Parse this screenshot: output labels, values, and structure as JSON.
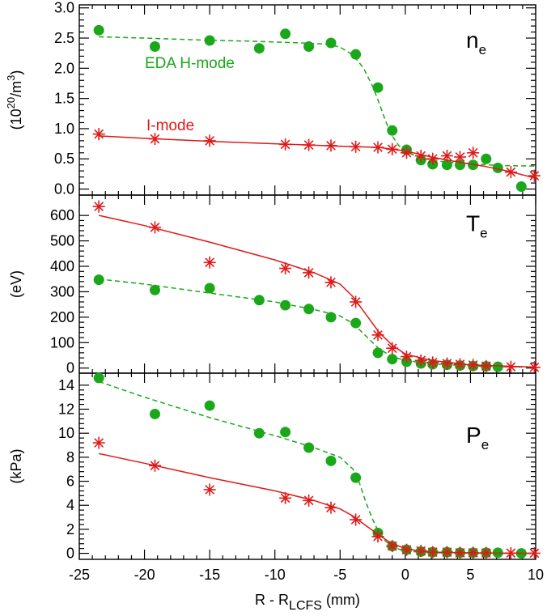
{
  "chart_data": {
    "type": "scatter",
    "shared_x": {
      "xlabel_main": "R - R",
      "xlabel_sub": "LCFS",
      "xlabel_unit": " (mm)",
      "xlim": [
        -25,
        10
      ],
      "xticks": [
        -25,
        -20,
        -15,
        -10,
        -5,
        0,
        5,
        10
      ]
    },
    "panels": [
      {
        "id": "ne",
        "label_main": "n",
        "label_sub": "e",
        "ylabel_pre": "(10",
        "ylabel_sup1": "20",
        "ylabel_mid": "/m",
        "ylabel_sup2": "3",
        "ylabel_post": ")",
        "ylim": [
          -0.1,
          3.05
        ],
        "yticks": [
          0.0,
          0.5,
          1.0,
          1.5,
          2.0,
          2.5,
          3.0
        ],
        "ytick_labels": [
          "0.0",
          "0.5",
          "1.0",
          "1.5",
          "2.0",
          "2.5",
          "3.0"
        ],
        "series": [
          {
            "name": "EDA H-mode",
            "marker": "circle",
            "line": "dashed",
            "color": "#1aa81a",
            "x": [
              -23.5,
              -19.2,
              -15,
              -11.2,
              -9.2,
              -7.4,
              -5.7,
              -3.8,
              -2.1,
              -1.0,
              0.1,
              1.2,
              2.1,
              3.2,
              4.2,
              5.2,
              6.2,
              7.1,
              8.9
            ],
            "y": [
              2.63,
              2.36,
              2.46,
              2.33,
              2.57,
              2.36,
              2.42,
              2.23,
              1.68,
              0.97,
              0.65,
              0.48,
              0.41,
              0.4,
              0.4,
              0.4,
              0.5,
              0.35,
              0.04
            ],
            "fit_x": [
              -23.5,
              -20,
              -16,
              -12,
              -8,
              -6,
              -5,
              -4,
              -3.2,
              -2.5,
              -2,
              -1.5,
              -1,
              -0.5,
              0,
              1,
              2,
              3,
              5,
              7,
              10
            ],
            "fit_y": [
              2.52,
              2.5,
              2.47,
              2.45,
              2.42,
              2.4,
              2.35,
              2.22,
              2.0,
              1.7,
              1.42,
              1.12,
              0.88,
              0.72,
              0.62,
              0.53,
              0.48,
              0.45,
              0.42,
              0.39,
              0.38
            ]
          },
          {
            "name": "I-mode",
            "marker": "asterisk",
            "line": "solid",
            "color": "#e01919",
            "x": [
              -23.5,
              -19.2,
              -15,
              -9.2,
              -7.4,
              -5.7,
              -3.8,
              -2.1,
              -1.0,
              0.1,
              1.2,
              2.1,
              3.2,
              4.2,
              5.2,
              8.1,
              9.9
            ],
            "y": [
              0.91,
              0.83,
              0.8,
              0.74,
              0.73,
              0.72,
              0.7,
              0.69,
              0.66,
              0.6,
              0.55,
              0.5,
              0.55,
              0.53,
              0.6,
              0.28,
              0.22
            ],
            "fit_x": [
              -23.5,
              -20,
              -15,
              -10,
              -5,
              -2,
              0,
              2,
              4,
              6,
              8,
              10
            ],
            "fit_y": [
              0.88,
              0.84,
              0.79,
              0.75,
              0.71,
              0.69,
              0.63,
              0.53,
              0.45,
              0.38,
              0.29,
              0.18
            ]
          }
        ]
      },
      {
        "id": "te",
        "label_main": "T",
        "label_sub": "e",
        "ylabel_pre": "(eV)",
        "ylim": [
          -20,
          680
        ],
        "yticks": [
          0,
          100,
          200,
          300,
          400,
          500,
          600
        ],
        "ytick_labels": [
          "0",
          "100",
          "200",
          "300",
          "400",
          "500",
          "600"
        ],
        "series": [
          {
            "name": "EDA H-mode",
            "marker": "circle",
            "line": "dashed",
            "color": "#1aa81a",
            "x": [
              -23.5,
              -19.2,
              -15,
              -11.2,
              -9.2,
              -7.4,
              -5.7,
              -3.8,
              -2.1,
              -1.0,
              0.1,
              1.2,
              2.1,
              3.2,
              4.2,
              5.2,
              6.2,
              7.1
            ],
            "y": [
              347,
              307,
              314,
              267,
              247,
              232,
              200,
              177,
              60,
              35,
              25,
              18,
              15,
              13,
              10,
              8,
              7,
              5
            ],
            "fit_x": [
              -23.5,
              -20,
              -15,
              -10,
              -7,
              -5,
              -4,
              -3,
              -2,
              -1,
              0,
              2,
              5,
              10
            ],
            "fit_y": [
              350,
              330,
              295,
              260,
              230,
              205,
              175,
              125,
              75,
              45,
              30,
              17,
              8,
              3
            ]
          },
          {
            "name": "I-mode",
            "marker": "asterisk",
            "line": "solid",
            "color": "#e01919",
            "x": [
              -23.5,
              -19.2,
              -15,
              -9.2,
              -7.4,
              -5.7,
              -3.8,
              -2.1,
              -1.0,
              0.1,
              1.2,
              2.1,
              3.2,
              4.2,
              5.2,
              6.2,
              8.1,
              9.9
            ],
            "y": [
              635,
              553,
              415,
              392,
              375,
              337,
              260,
              130,
              78,
              45,
              30,
              22,
              18,
              15,
              12,
              8,
              5,
              3
            ],
            "fit_x": [
              -23.5,
              -20,
              -15,
              -10,
              -7,
              -5,
              -4,
              -3,
              -2,
              -1,
              0,
              2,
              5,
              10
            ],
            "fit_y": [
              600,
              560,
              495,
              425,
              375,
              330,
              280,
              210,
              140,
              90,
              55,
              30,
              12,
              4
            ]
          }
        ]
      },
      {
        "id": "pe",
        "label_main": "P",
        "label_sub": "e",
        "ylabel_pre": "(kPa)",
        "ylim": [
          -0.5,
          15.0
        ],
        "yticks": [
          0,
          2,
          4,
          6,
          8,
          10,
          12,
          14
        ],
        "ytick_labels": [
          "0",
          "2",
          "4",
          "6",
          "8",
          "10",
          "12",
          "14"
        ],
        "series": [
          {
            "name": "EDA H-mode",
            "marker": "circle",
            "line": "dashed",
            "color": "#1aa81a",
            "x": [
              -23.5,
              -19.2,
              -15,
              -11.2,
              -9.2,
              -7.4,
              -5.7,
              -3.8,
              -2.1,
              -1.0,
              0.1,
              1.2,
              2.1,
              3.2,
              4.2,
              5.2,
              6.2,
              7.1,
              8.9
            ],
            "y": [
              14.6,
              11.6,
              12.3,
              10.0,
              10.1,
              8.8,
              7.7,
              6.3,
              1.7,
              0.6,
              0.3,
              0.15,
              0.1,
              0.1,
              0.05,
              0.05,
              0.05,
              0.05,
              0.0
            ],
            "fit_x": [
              -23.5,
              -20,
              -15,
              -10,
              -7,
              -5,
              -4,
              -3.5,
              -3,
              -2.5,
              -2,
              -1.5,
              -1,
              -0.5,
              0,
              1,
              2,
              5,
              10
            ],
            "fit_y": [
              14.3,
              13.0,
              11.3,
              9.8,
              8.8,
              8.0,
              7.0,
              5.8,
              4.2,
              2.8,
              1.7,
              1.0,
              0.6,
              0.35,
              0.22,
              0.1,
              0.05,
              0.02,
              0.0
            ],
            "unused": []
          },
          {
            "name": "I-mode",
            "marker": "asterisk",
            "line": "solid",
            "color": "#e01919",
            "x": [
              -23.5,
              -19.2,
              -15,
              -9.2,
              -7.4,
              -5.7,
              -3.8,
              -2.1,
              -1.0,
              0.1,
              1.2,
              2.1,
              3.2,
              4.2,
              5.2,
              6.2,
              8.1,
              9.9
            ],
            "y": [
              9.2,
              7.3,
              5.3,
              4.6,
              4.4,
              3.8,
              2.8,
              1.4,
              0.6,
              0.3,
              0.2,
              0.1,
              0.1,
              0.05,
              0.05,
              0.03,
              0.02,
              0.01
            ],
            "fit_x": [
              -23.5,
              -20,
              -15,
              -10,
              -7,
              -5,
              -4,
              -3,
              -2,
              -1,
              0,
              1,
              2,
              5,
              10
            ],
            "fit_y": [
              8.3,
              7.5,
              6.3,
              5.2,
              4.4,
              3.7,
              3.1,
              2.3,
              1.5,
              0.8,
              0.4,
              0.2,
              0.1,
              0.03,
              0.0
            ]
          }
        ]
      }
    ]
  }
}
